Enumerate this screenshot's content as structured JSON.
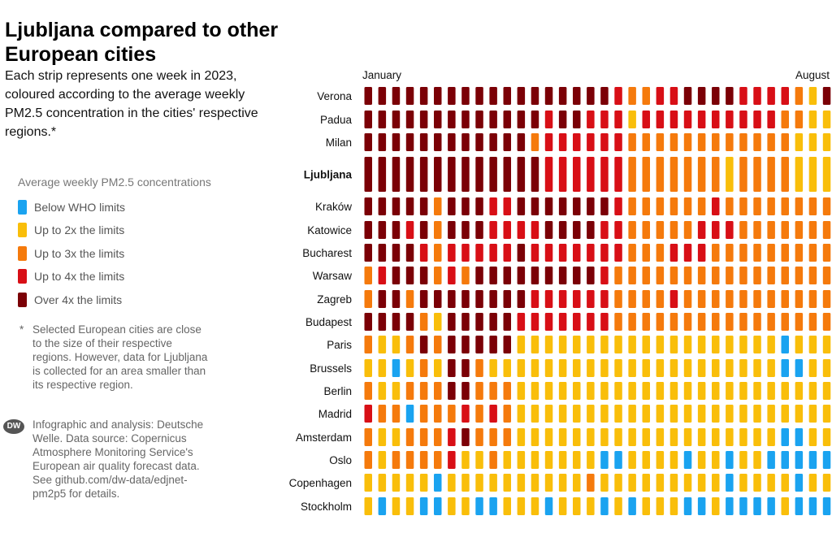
{
  "title": "Ljubljana compared to other European cities",
  "subtitle": "Each strip represents one week in 2023, coloured according to the average weekly PM2.5 concentration in the cities' respective regions.*",
  "legend": {
    "title": "Average weekly PM2.5 concentrations",
    "items": [
      {
        "label": "Below WHO limits",
        "color": "#1aa3f0"
      },
      {
        "label": "Up to 2x the limits",
        "color": "#f9be0a"
      },
      {
        "label": "Up to 3x the limits",
        "color": "#f57a0c"
      },
      {
        "label": "Up to 4x the limits",
        "color": "#d80f16"
      },
      {
        "label": "Over 4x the limits",
        "color": "#7b0006"
      }
    ]
  },
  "footnote": {
    "marker": "*",
    "text": "Selected European cities are close to the size of their respective regions. However, data for Ljubljana is collected for an area smaller than its respective region."
  },
  "source": {
    "logo_text": "DW",
    "text": "Infographic and analysis: Deutsche Welle. Data source: Copernicus Atmosphere Monitoring Service's European air quality forecast data. See github.com/dw-data/edjnet-pm2p5 for details."
  },
  "chart_data": {
    "type": "heatmap",
    "x_start_label": "January",
    "x_end_label": "August",
    "weeks": 34,
    "category_scale": {
      "0": "Below WHO limits",
      "1": "Up to 2x the limits",
      "2": "Up to 3x the limits",
      "3": "Up to 4x the limits",
      "4": "Over 4x the limits"
    },
    "rows": [
      {
        "city": "Verona",
        "values": [
          4,
          4,
          4,
          4,
          4,
          4,
          4,
          4,
          4,
          4,
          4,
          4,
          4,
          4,
          4,
          4,
          4,
          4,
          3,
          2,
          2,
          3,
          3,
          4,
          4,
          4,
          4,
          3,
          3,
          3,
          3,
          2,
          1,
          4
        ]
      },
      {
        "city": "Padua",
        "values": [
          4,
          4,
          4,
          4,
          4,
          4,
          4,
          4,
          4,
          4,
          4,
          4,
          4,
          3,
          4,
          4,
          3,
          3,
          3,
          1,
          3,
          3,
          3,
          3,
          3,
          3,
          3,
          3,
          3,
          3,
          2,
          2,
          1,
          1
        ]
      },
      {
        "city": "Milan",
        "values": [
          4,
          4,
          4,
          4,
          4,
          4,
          4,
          4,
          4,
          4,
          4,
          4,
          2,
          3,
          3,
          3,
          3,
          3,
          3,
          2,
          2,
          2,
          2,
          2,
          2,
          2,
          2,
          2,
          2,
          2,
          2,
          1,
          1,
          1
        ]
      },
      {
        "city": "Ljubljana",
        "values": [
          4,
          4,
          4,
          4,
          4,
          4,
          4,
          4,
          4,
          4,
          4,
          4,
          4,
          3,
          3,
          3,
          3,
          3,
          3,
          2,
          2,
          2,
          2,
          2,
          2,
          2,
          1,
          2,
          2,
          2,
          2,
          1,
          1,
          1
        ],
        "bold": true
      },
      {
        "city": "Kraków",
        "values": [
          4,
          4,
          4,
          4,
          4,
          2,
          4,
          4,
          4,
          3,
          3,
          4,
          4,
          4,
          4,
          4,
          4,
          4,
          3,
          2,
          2,
          2,
          2,
          2,
          2,
          3,
          2,
          2,
          2,
          2,
          2,
          2,
          2,
          2
        ]
      },
      {
        "city": "Katowice",
        "values": [
          4,
          4,
          4,
          3,
          4,
          2,
          4,
          4,
          4,
          3,
          3,
          3,
          3,
          4,
          4,
          4,
          4,
          3,
          3,
          2,
          2,
          2,
          2,
          2,
          3,
          3,
          3,
          2,
          2,
          2,
          2,
          2,
          2,
          2
        ]
      },
      {
        "city": "Bucharest",
        "values": [
          4,
          4,
          4,
          4,
          3,
          2,
          3,
          3,
          3,
          3,
          3,
          4,
          3,
          3,
          3,
          3,
          3,
          3,
          3,
          2,
          2,
          2,
          3,
          3,
          3,
          2,
          2,
          2,
          2,
          2,
          2,
          2,
          2,
          2
        ]
      },
      {
        "city": "Warsaw",
        "values": [
          2,
          3,
          4,
          4,
          4,
          2,
          3,
          2,
          4,
          4,
          4,
          4,
          4,
          4,
          4,
          4,
          4,
          3,
          2,
          2,
          2,
          2,
          2,
          2,
          2,
          2,
          2,
          2,
          2,
          2,
          2,
          2,
          2,
          2
        ]
      },
      {
        "city": "Zagreb",
        "values": [
          2,
          4,
          4,
          2,
          4,
          4,
          4,
          4,
          4,
          4,
          4,
          4,
          3,
          3,
          3,
          3,
          3,
          3,
          2,
          2,
          2,
          2,
          3,
          2,
          2,
          2,
          2,
          2,
          2,
          2,
          2,
          2,
          2,
          2
        ]
      },
      {
        "city": "Budapest",
        "values": [
          4,
          4,
          4,
          4,
          2,
          1,
          4,
          4,
          4,
          4,
          4,
          3,
          3,
          3,
          3,
          3,
          3,
          3,
          2,
          2,
          2,
          2,
          2,
          2,
          2,
          2,
          2,
          2,
          2,
          2,
          2,
          2,
          2,
          2
        ]
      },
      {
        "city": "Paris",
        "values": [
          2,
          1,
          1,
          2,
          4,
          2,
          4,
          4,
          4,
          4,
          4,
          1,
          1,
          1,
          1,
          1,
          1,
          1,
          1,
          1,
          1,
          1,
          1,
          1,
          1,
          1,
          1,
          1,
          1,
          1,
          0,
          1,
          1,
          1
        ]
      },
      {
        "city": "Brussels",
        "values": [
          1,
          1,
          0,
          1,
          2,
          1,
          4,
          4,
          2,
          1,
          1,
          1,
          1,
          1,
          1,
          1,
          1,
          1,
          1,
          1,
          1,
          1,
          1,
          1,
          1,
          1,
          1,
          1,
          1,
          1,
          0,
          0,
          1,
          1
        ]
      },
      {
        "city": "Berlin",
        "values": [
          2,
          1,
          1,
          2,
          2,
          2,
          4,
          4,
          2,
          2,
          2,
          1,
          1,
          1,
          1,
          1,
          1,
          1,
          1,
          1,
          1,
          1,
          1,
          1,
          1,
          1,
          1,
          1,
          1,
          1,
          1,
          1,
          1,
          1
        ]
      },
      {
        "city": "Madrid",
        "values": [
          3,
          2,
          2,
          0,
          2,
          2,
          2,
          3,
          2,
          3,
          2,
          1,
          1,
          1,
          1,
          1,
          1,
          1,
          1,
          1,
          1,
          1,
          1,
          1,
          1,
          1,
          1,
          1,
          1,
          1,
          1,
          1,
          1,
          1
        ]
      },
      {
        "city": "Amsterdam",
        "values": [
          2,
          1,
          1,
          2,
          2,
          2,
          3,
          4,
          2,
          2,
          2,
          1,
          1,
          1,
          1,
          1,
          1,
          1,
          1,
          1,
          1,
          1,
          1,
          1,
          1,
          1,
          1,
          1,
          1,
          1,
          0,
          0,
          1,
          1
        ]
      },
      {
        "city": "Oslo",
        "values": [
          2,
          1,
          2,
          2,
          2,
          2,
          3,
          1,
          1,
          2,
          1,
          1,
          1,
          1,
          1,
          1,
          1,
          0,
          0,
          1,
          1,
          1,
          1,
          0,
          1,
          1,
          0,
          1,
          1,
          0,
          0,
          0,
          0,
          0
        ]
      },
      {
        "city": "Copenhagen",
        "values": [
          1,
          1,
          1,
          1,
          1,
          0,
          1,
          1,
          1,
          1,
          1,
          1,
          1,
          1,
          1,
          1,
          2,
          1,
          1,
          1,
          1,
          1,
          1,
          1,
          1,
          1,
          0,
          1,
          1,
          1,
          1,
          0,
          1,
          1
        ]
      },
      {
        "city": "Stockholm",
        "values": [
          1,
          0,
          1,
          1,
          0,
          0,
          1,
          1,
          0,
          0,
          1,
          1,
          1,
          0,
          1,
          1,
          1,
          0,
          1,
          0,
          1,
          1,
          1,
          0,
          0,
          1,
          0,
          0,
          0,
          0,
          1,
          0,
          0,
          0
        ]
      }
    ]
  }
}
